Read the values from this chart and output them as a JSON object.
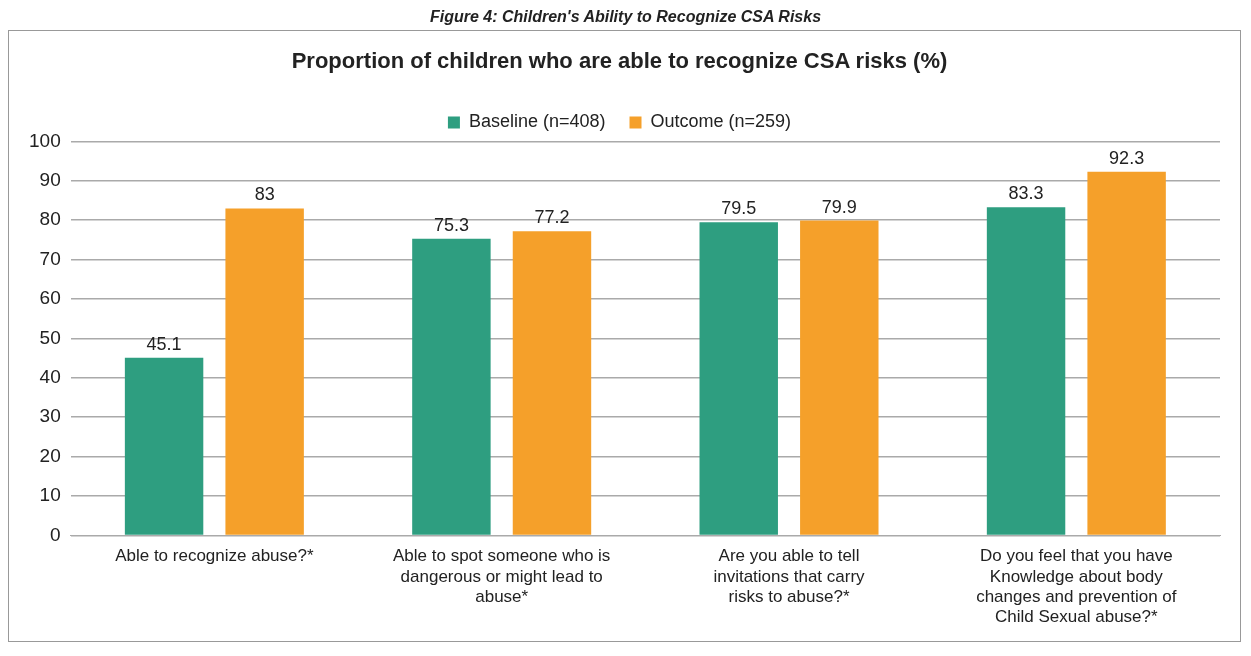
{
  "chart_data": {
    "type": "bar",
    "title": "Proportion of children who are able to recognize CSA risks (%)",
    "annotations": [
      "Figure 4: Children's Ability to Recognize CSA Risks"
    ],
    "categories": [
      "Able to recognize abuse?*",
      "Able to spot someone who is dangerous or might lead to abuse*",
      "Are you able to tell invitations that carry risks to abuse?*",
      "Do you feel that you have Knowledge about body changes and prevention of Child Sexual abuse?*"
    ],
    "series": [
      {
        "name": "Baseline (n=408)",
        "color": "#2e9e80",
        "values": [
          45.1,
          75.3,
          79.5,
          83.3
        ]
      },
      {
        "name": "Outcome (n=259)",
        "color": "#f5a02a",
        "values": [
          83,
          77.2,
          79.9,
          92.3
        ]
      }
    ],
    "ylim": [
      0,
      100
    ],
    "yticks": [
      0,
      10,
      20,
      30,
      40,
      50,
      60,
      70,
      80,
      90,
      100
    ],
    "grid": "y",
    "legend": "top",
    "data_labels": true
  }
}
